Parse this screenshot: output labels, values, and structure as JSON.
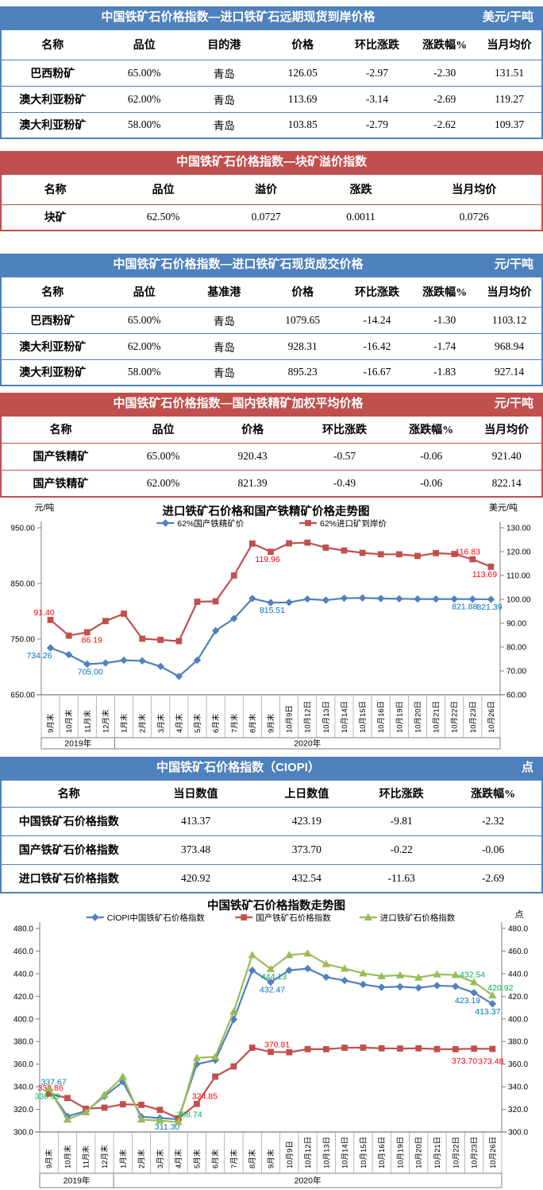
{
  "colors": {
    "header_blue": "#4F81BD",
    "header_red": "#C0504D",
    "series_blue": "#4F81BD",
    "series_red": "#C0504D",
    "series_green": "#9BBB59",
    "label_blue": "#0070C0",
    "label_red": "#FF0000",
    "label_green": "#00B050"
  },
  "tables": [
    {
      "theme": "blue",
      "title": "中国铁矿石价格指数—进口铁矿石远期现货到岸价格",
      "unit": "美元/干吨",
      "headers": [
        "名称",
        "品位",
        "目的港",
        "价格",
        "环比涨跌",
        "涨跌幅%",
        "当月均价"
      ],
      "rows": [
        [
          "巴西粉矿",
          "65.00%",
          "青岛",
          "126.05",
          "-2.97",
          "-2.30",
          "131.51"
        ],
        [
          "澳大利亚粉矿",
          "62.00%",
          "青岛",
          "113.69",
          "-3.14",
          "-2.69",
          "119.27"
        ],
        [
          "澳大利亚粉矿",
          "58.00%",
          "青岛",
          "103.85",
          "-2.79",
          "-2.62",
          "109.37"
        ]
      ]
    },
    {
      "theme": "red",
      "title": "中国铁矿石价格指数—块矿溢价指数",
      "unit": "",
      "headers": [
        "名称",
        "品位",
        "溢价",
        "涨跌",
        "当月均价"
      ],
      "rows": [
        [
          "块矿",
          "62.50%",
          "0.0727",
          "0.0011",
          "0.0726"
        ]
      ]
    },
    {
      "theme": "blue",
      "title": "中国铁矿石价格指数—进口铁矿石现货成交价格",
      "unit": "元/干吨",
      "headers": [
        "名称",
        "品位",
        "基准港",
        "价格",
        "环比涨跌",
        "涨跌幅%",
        "当月均价"
      ],
      "rows": [
        [
          "巴西粉矿",
          "65.00%",
          "青岛",
          "1079.65",
          "-14.24",
          "-1.30",
          "1103.12"
        ],
        [
          "澳大利亚粉矿",
          "62.00%",
          "青岛",
          "928.31",
          "-16.42",
          "-1.74",
          "968.94"
        ],
        [
          "澳大利亚粉矿",
          "58.00%",
          "青岛",
          "895.23",
          "-16.67",
          "-1.83",
          "927.14"
        ]
      ]
    },
    {
      "theme": "red",
      "title": "中国铁矿石价格指数—国内铁精矿加权平均价格",
      "unit": "元/干吨",
      "headers": [
        "名称",
        "品位",
        "价格",
        "环比涨跌",
        "涨跌幅%",
        "当月均价"
      ],
      "rows": [
        [
          "国产铁精矿",
          "65.00%",
          "920.43",
          "-0.57",
          "-0.06",
          "921.40"
        ],
        [
          "国产铁精矿",
          "62.00%",
          "821.39",
          "-0.49",
          "-0.06",
          "822.14"
        ]
      ]
    },
    {
      "theme": "blue",
      "title": "中国铁矿石价格指数（CIOPI）",
      "unit": "点",
      "headers": [
        "名称",
        "当日数值",
        "上日数值",
        "环比涨跌",
        "涨跌幅%"
      ],
      "rows": [
        [
          "中国铁矿石价格指数",
          "413.37",
          "423.19",
          "-9.81",
          "-2.32"
        ],
        [
          "国产铁矿石价格指数",
          "373.48",
          "373.70",
          "-0.22",
          "-0.06"
        ],
        [
          "进口铁矿石价格指数",
          "420.92",
          "432.54",
          "-11.63",
          "-2.69"
        ]
      ]
    }
  ],
  "chart_data": [
    {
      "type": "line",
      "title": "进口铁矿石价格和国产铁精矿价格走势图",
      "left_axis": {
        "title": "元/吨",
        "min": 650,
        "max": 950,
        "ticks": [
          "950.00",
          "850.00",
          "750.00",
          "650.00"
        ]
      },
      "right_axis": {
        "title": "美元/吨",
        "min": 60,
        "max": 130,
        "ticks": [
          "130.00",
          "120.00",
          "110.00",
          "100.00",
          "90.00",
          "80.00",
          "70.00",
          "60.00"
        ]
      },
      "categories": [
        "9月末",
        "10月末",
        "11月末",
        "12月末",
        "1月末",
        "2月末",
        "3月末",
        "4月末",
        "5月末",
        "6月末",
        "7月末",
        "8月末",
        "9月末",
        "10月9日",
        "10月12日",
        "10月13日",
        "10月14日",
        "10月15日",
        "10月16日",
        "10月19日",
        "10月20日",
        "10月21日",
        "10月22日",
        "10月23日",
        "10月26日"
      ],
      "year_groups": [
        {
          "label": "2019年",
          "count": 4
        },
        {
          "label": "2020年",
          "count": 21
        }
      ],
      "grid": false,
      "legend_position": "top",
      "series": [
        {
          "name": "62%国产铁精矿价",
          "axis": "left",
          "marker": "diamond",
          "color": "#4F81BD",
          "label_color": "#0070C0",
          "values": [
            734.26,
            722.0,
            705.0,
            707.0,
            712.0,
            711.0,
            701.0,
            683.0,
            712.0,
            765.0,
            787.0,
            823.0,
            815.51,
            816.0,
            822.0,
            820.0,
            823.5,
            824.0,
            823.0,
            822.5,
            822.0,
            822.0,
            822.0,
            821.88,
            821.39
          ],
          "labels": [
            {
              "i": 0,
              "text": "734.26",
              "pos": "b",
              "dx": -14
            },
            {
              "i": 2,
              "text": "705.00",
              "pos": "b",
              "dx": 4
            },
            {
              "i": 12,
              "text": "815.51",
              "pos": "b",
              "dx": 2
            },
            {
              "i": 23,
              "text": "821.88",
              "pos": "b",
              "dx": -10
            },
            {
              "i": 24,
              "text": "821.39",
              "pos": "b",
              "dx": -2
            }
          ]
        },
        {
          "name": "62%进口矿到岸价",
          "axis": "right",
          "marker": "square",
          "color": "#C0504D",
          "label_color": "#FF0000",
          "values": [
            91.4,
            84.8,
            86.19,
            90.9,
            94.0,
            83.5,
            83.0,
            82.5,
            99.0,
            99.2,
            110.0,
            123.4,
            119.96,
            123.5,
            123.8,
            121.7,
            120.5,
            119.5,
            118.9,
            118.9,
            118.2,
            119.4,
            119.0,
            116.83,
            113.69
          ],
          "labels": [
            {
              "i": 0,
              "text": "91.40",
              "pos": "a",
              "dx": -8
            },
            {
              "i": 2,
              "text": "86.19",
              "pos": "b",
              "dx": 6
            },
            {
              "i": 12,
              "text": "119.96",
              "pos": "b",
              "dx": -4
            },
            {
              "i": 23,
              "text": "116.83",
              "pos": "a",
              "dx": -6
            },
            {
              "i": 24,
              "text": "113.69",
              "pos": "b",
              "dx": -8
            }
          ]
        }
      ]
    },
    {
      "type": "line",
      "title": "中国铁矿石价格指数走势图",
      "left_axis": {
        "title": "",
        "min": 300,
        "max": 480,
        "ticks": [
          "480.0",
          "460.0",
          "440.0",
          "420.0",
          "400.0",
          "380.0",
          "360.0",
          "340.0",
          "320.0",
          "300.0"
        ]
      },
      "right_axis": {
        "title": "点",
        "min": 300,
        "max": 480,
        "ticks": [
          "480.0",
          "460.0",
          "440.0",
          "420.0",
          "400.0",
          "380.0",
          "360.0",
          "340.0",
          "320.0",
          "300.0"
        ]
      },
      "categories": [
        "9月末",
        "10月末",
        "11月末",
        "12月末",
        "1月末",
        "2月末",
        "3月末",
        "4月末",
        "5月末",
        "6月末",
        "7月末",
        "8月末",
        "9月末",
        "10月9日",
        "10月12日",
        "10月13日",
        "10月14日",
        "10月15日",
        "10月16日",
        "10月19日",
        "10月20日",
        "10月21日",
        "10月22日",
        "10月23日",
        "10月26日"
      ],
      "year_groups": [
        {
          "label": "2019年",
          "count": 4
        },
        {
          "label": "2020年",
          "count": 21
        }
      ],
      "grid": false,
      "legend_position": "top",
      "series": [
        {
          "name": "CIOPI中国铁矿石价格指数",
          "axis": "left",
          "marker": "diamond",
          "color": "#4F81BD",
          "label_color": "#0070C0",
          "values": [
            337.67,
            313.8,
            318.5,
            331.5,
            344.5,
            313.5,
            312.3,
            311.3,
            360.0,
            363.5,
            399.5,
            443.0,
            432.47,
            443.0,
            444.5,
            437.0,
            434.0,
            430.5,
            428.0,
            428.5,
            427.5,
            429.5,
            428.8,
            423.19,
            413.37
          ],
          "labels": [
            {
              "i": 0,
              "text": "337.67",
              "pos": "a",
              "dx": 6
            },
            {
              "i": 7,
              "text": "311.30",
              "pos": "b",
              "dx": -14
            },
            {
              "i": 12,
              "text": "432.47",
              "pos": "b",
              "dx": 2
            },
            {
              "i": 23,
              "text": "423.19",
              "pos": "b",
              "dx": -8
            },
            {
              "i": 24,
              "text": "413.37",
              "pos": "b",
              "dx": -6
            }
          ]
        },
        {
          "name": "国产铁矿石价格指数",
          "axis": "left",
          "marker": "square",
          "color": "#C0504D",
          "label_color": "#FF0000",
          "values": [
            333.86,
            330.0,
            320.5,
            321.5,
            324.5,
            324.0,
            319.5,
            312.0,
            324.85,
            349.0,
            358.0,
            374.5,
            370.81,
            370.5,
            373.3,
            373.2,
            374.5,
            374.6,
            374.0,
            373.8,
            374.0,
            373.3,
            373.2,
            373.7,
            373.48
          ],
          "labels": [
            {
              "i": 0,
              "text": "333.86",
              "pos": "a",
              "dx": 2,
              "dy": 2
            },
            {
              "i": 8,
              "text": "324.85",
              "pos": "a",
              "dx": 10
            },
            {
              "i": 12,
              "text": "370.81",
              "pos": "a",
              "dx": 8
            },
            {
              "i": 23,
              "text": "373.70",
              "pos": "b",
              "dx": -12,
              "dy": 6
            },
            {
              "i": 24,
              "text": "373.48",
              "pos": "b",
              "dx": -2,
              "dy": 6
            }
          ]
        },
        {
          "name": "进口铁矿石价格指数",
          "axis": "left",
          "marker": "triangle",
          "color": "#9BBB59",
          "label_color": "#00B050",
          "values": [
            338.39,
            311.0,
            317.5,
            333.0,
            349.0,
            311.0,
            310.0,
            308.74,
            365.5,
            366.5,
            406.5,
            456.5,
            444.13,
            456.5,
            458.0,
            448.5,
            444.5,
            440.3,
            437.8,
            438.6,
            436.6,
            439.4,
            438.9,
            432.54,
            420.92
          ],
          "labels": [
            {
              "i": 0,
              "text": "338.39",
              "pos": "b",
              "dx": -2
            },
            {
              "i": 7,
              "text": "308.74",
              "pos": "a",
              "dx": 14
            },
            {
              "i": 12,
              "text": "444.13",
              "pos": "b",
              "dx": 4
            },
            {
              "i": 23,
              "text": "432.54",
              "pos": "a",
              "dx": -2
            },
            {
              "i": 24,
              "text": "420.92",
              "pos": "a",
              "dx": 10
            }
          ]
        }
      ]
    }
  ]
}
